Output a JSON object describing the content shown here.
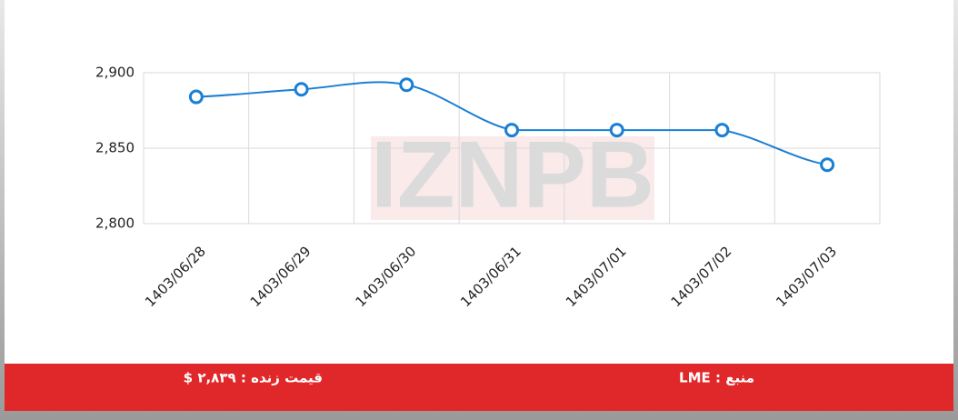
{
  "chart_data": {
    "type": "line",
    "categories": [
      "1403/06/28",
      "1403/06/29",
      "1403/06/30",
      "1403/06/31",
      "1403/07/01",
      "1403/07/02",
      "1403/07/03"
    ],
    "series": [
      {
        "color": "#1a7fd4",
        "values": [
          2884,
          2889,
          2892,
          2862,
          2862,
          2862,
          2839
        ]
      }
    ],
    "ylim": [
      2800,
      2900
    ],
    "yticks": [
      {
        "value": 2800,
        "label": "2,800"
      },
      {
        "value": 2850,
        "label": "2,850"
      },
      {
        "value": 2900,
        "label": "2,900"
      }
    ],
    "grid": true
  },
  "watermark": "IZNPB",
  "footer": {
    "price": "قیمت زنده : ۲,۸۳۹ $",
    "source": "منبع : LME"
  }
}
